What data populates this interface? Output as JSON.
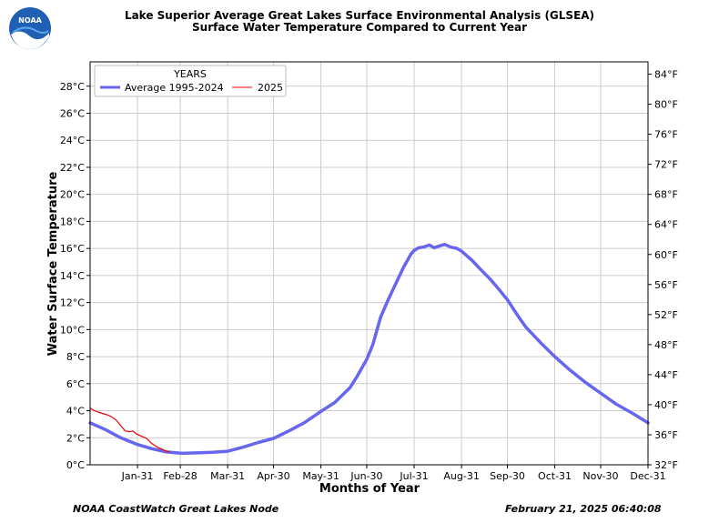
{
  "title_line1": "Lake Superior Average Great Lakes Surface Environmental Analysis (GLSEA)",
  "title_line2": "Surface Water Temperature Compared to Current Year",
  "logo_text": "NOAA",
  "footer_left": "NOAA CoastWatch Great Lakes Node",
  "footer_right": "February 21, 2025 06:40:08",
  "chart_data": {
    "type": "line",
    "xlabel": "Months of Year",
    "ylabel": "Water Surface Temperature",
    "xlim": [
      0,
      365
    ],
    "ylim": [
      0,
      29.8
    ],
    "y_ticks": [
      0,
      2,
      4,
      6,
      8,
      10,
      12,
      14,
      16,
      18,
      20,
      22,
      24,
      26,
      28
    ],
    "y_tick_labels": [
      "0°C",
      "2°C",
      "4°C",
      "6°C",
      "8°C",
      "10°C",
      "12°C",
      "14°C",
      "16°C",
      "18°C",
      "20°C",
      "22°C",
      "24°C",
      "26°C",
      "28°C"
    ],
    "x_ticks": [
      31,
      59,
      90,
      120,
      151,
      181,
      212,
      243,
      273,
      304,
      334,
      365
    ],
    "x_tick_labels": [
      "Jan-31",
      "Feb-28",
      "Mar-31",
      "Apr-30",
      "May-31",
      "Jun-30",
      "Jul-31",
      "Aug-31",
      "Sep-30",
      "Oct-31",
      "Nov-30",
      "Dec-31"
    ],
    "y2_ticks_f": [
      32,
      36,
      40,
      44,
      48,
      52,
      56,
      60,
      64,
      68,
      72,
      76,
      80,
      84
    ],
    "y2_tick_labels": [
      "32°F",
      "36°F",
      "40°F",
      "44°F",
      "48°F",
      "52°F",
      "56°F",
      "60°F",
      "64°F",
      "68°F",
      "72°F",
      "76°F",
      "80°F",
      "84°F"
    ],
    "grid": true,
    "legend": {
      "title": "YEARS",
      "placement": "top-left"
    },
    "series": [
      {
        "name": "Average 1995-2024",
        "color": "#6666ee",
        "x": [
          0,
          10,
          20,
          31,
          40,
          50,
          60,
          70,
          80,
          90,
          100,
          110,
          120,
          130,
          140,
          151,
          160,
          170,
          175,
          181,
          185,
          190,
          195,
          200,
          205,
          210,
          212,
          215,
          218,
          222,
          225,
          229,
          232,
          236,
          240,
          243,
          250,
          255,
          262,
          268,
          273,
          280,
          285,
          295,
          304,
          314,
          324,
          334,
          344,
          355,
          365
        ],
        "y": [
          3.1,
          2.6,
          2.0,
          1.5,
          1.2,
          0.95,
          0.85,
          0.88,
          0.93,
          1.0,
          1.3,
          1.65,
          1.95,
          2.5,
          3.1,
          3.95,
          4.6,
          5.7,
          6.6,
          7.8,
          8.9,
          10.9,
          12.2,
          13.4,
          14.6,
          15.6,
          15.85,
          16.05,
          16.1,
          16.25,
          16.05,
          16.2,
          16.3,
          16.1,
          16.0,
          15.8,
          15.1,
          14.5,
          13.7,
          12.9,
          12.2,
          11.0,
          10.2,
          9.0,
          8.0,
          7.0,
          6.1,
          5.3,
          4.5,
          3.8,
          3.1
        ]
      },
      {
        "name": "2025",
        "color": "#ee0000",
        "x": [
          0,
          2,
          5,
          8,
          11,
          14,
          17,
          20,
          23,
          26,
          28,
          30,
          32,
          34,
          36,
          38,
          40,
          42,
          44,
          46,
          48,
          50,
          52
        ],
        "y": [
          4.2,
          4.05,
          3.9,
          3.8,
          3.7,
          3.55,
          3.3,
          2.9,
          2.5,
          2.45,
          2.5,
          2.3,
          2.2,
          2.1,
          2.0,
          1.85,
          1.6,
          1.45,
          1.3,
          1.2,
          1.1,
          1.0,
          0.95
        ]
      }
    ]
  }
}
